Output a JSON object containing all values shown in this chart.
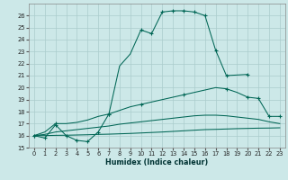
{
  "xlabel": "Humidex (Indice chaleur)",
  "bg_color": "#cce8e8",
  "grid_color": "#aacccc",
  "line_color": "#006655",
  "xlim_min": -0.5,
  "xlim_max": 23.5,
  "ylim_min": 15,
  "ylim_max": 27,
  "curve1_x": [
    0,
    1,
    2,
    3,
    4,
    5,
    6,
    7,
    8,
    9,
    10,
    11,
    12,
    13,
    14,
    15,
    16,
    17,
    18,
    20
  ],
  "curve1_y": [
    16.0,
    15.8,
    16.9,
    16.0,
    15.6,
    15.5,
    16.3,
    17.8,
    21.8,
    22.8,
    24.8,
    24.5,
    26.3,
    26.4,
    26.4,
    26.3,
    26.0,
    23.1,
    21.0,
    21.1
  ],
  "curve1_mk_x": [
    0,
    1,
    2,
    3,
    4,
    5,
    6,
    7,
    10,
    11,
    12,
    13,
    14,
    15,
    16,
    17,
    18,
    20
  ],
  "curve1_mk_y": [
    16.0,
    15.8,
    16.9,
    16.0,
    15.6,
    15.5,
    16.3,
    17.8,
    24.8,
    24.5,
    26.3,
    26.4,
    26.4,
    26.3,
    26.0,
    23.1,
    21.0,
    21.1
  ],
  "curve2_x": [
    0,
    1,
    2,
    3,
    4,
    5,
    6,
    7,
    8,
    9,
    10,
    11,
    12,
    13,
    14,
    15,
    16,
    17,
    18,
    19,
    20,
    21,
    22,
    23
  ],
  "curve2_y": [
    16.0,
    16.3,
    17.0,
    17.0,
    17.1,
    17.3,
    17.6,
    17.8,
    18.1,
    18.4,
    18.6,
    18.8,
    19.0,
    19.2,
    19.4,
    19.6,
    19.8,
    20.0,
    19.9,
    19.6,
    19.2,
    19.1,
    17.6,
    17.6
  ],
  "curve2_mk_x": [
    0,
    2,
    7,
    10,
    14,
    18,
    20,
    21,
    22,
    23
  ],
  "curve2_mk_y": [
    16.0,
    17.0,
    17.8,
    18.6,
    19.4,
    19.9,
    19.2,
    19.1,
    17.6,
    17.6
  ],
  "curve3_x": [
    0,
    1,
    2,
    3,
    4,
    5,
    6,
    7,
    8,
    9,
    10,
    11,
    12,
    13,
    14,
    15,
    16,
    17,
    18,
    19,
    20,
    21,
    22,
    23
  ],
  "curve3_y": [
    16.0,
    16.1,
    16.3,
    16.4,
    16.5,
    16.6,
    16.7,
    16.8,
    16.95,
    17.05,
    17.15,
    17.25,
    17.35,
    17.45,
    17.55,
    17.65,
    17.7,
    17.7,
    17.65,
    17.55,
    17.45,
    17.35,
    17.15,
    17.0
  ],
  "curve4_x": [
    0,
    1,
    2,
    3,
    4,
    5,
    6,
    7,
    8,
    9,
    10,
    11,
    12,
    13,
    14,
    15,
    16,
    17,
    18,
    19,
    20,
    21,
    22,
    23
  ],
  "curve4_y": [
    16.0,
    16.0,
    16.02,
    16.03,
    16.05,
    16.07,
    16.1,
    16.12,
    16.15,
    16.18,
    16.22,
    16.26,
    16.3,
    16.35,
    16.4,
    16.45,
    16.5,
    16.52,
    16.55,
    16.58,
    16.6,
    16.62,
    16.63,
    16.65
  ]
}
